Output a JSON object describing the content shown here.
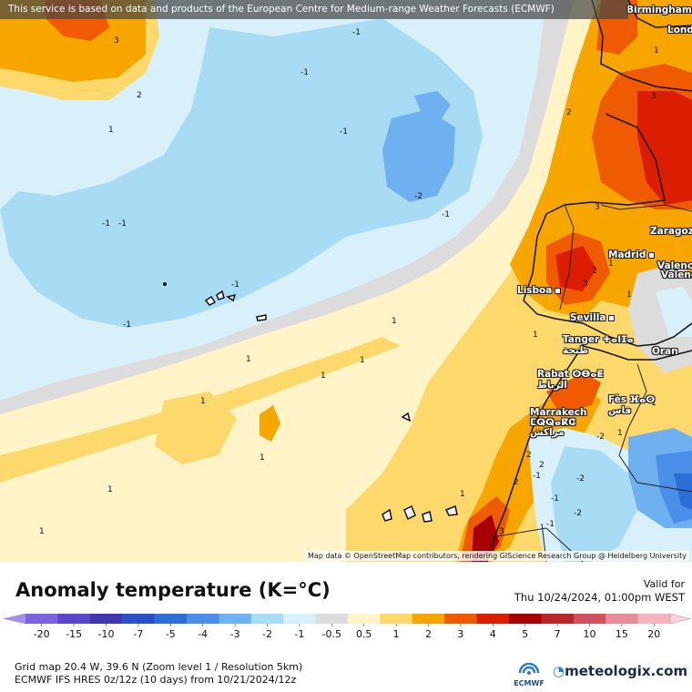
{
  "map": {
    "banner_text": "This service is based on data and products of the European Centre for Medium-range Weather Forecasts (ECMWF)",
    "attribution": "Map data © OpenStreetMap contributors, rendering GIScience Research Group @ Heidelberg University",
    "cities": [
      {
        "name": "Birmingham"
      },
      {
        "name": "Lond"
      },
      {
        "name": "Lisboa"
      },
      {
        "name": "Madrid"
      },
      {
        "name": "Zaragoz"
      },
      {
        "name": "Valenc"
      },
      {
        "name": "Valenc"
      },
      {
        "name": "Sevilla"
      },
      {
        "name": "Tanger ⵜⴰⵏⵊⴰ\nطنجة"
      },
      {
        "name": "Oran"
      },
      {
        "name": "Rabat ⵔⴱⴰⵟ\nالرباط"
      },
      {
        "name": "Fès ⴼⴰⵙ\nفاس"
      },
      {
        "name": "Marrakech\nⵎⵕⵕⴰⴽⵛ\nمراكش"
      }
    ],
    "contour_labels": [
      "3",
      "2",
      "1",
      "-1",
      "-1",
      "-1",
      "-1",
      "-2",
      "-1",
      "-1",
      "-1",
      "-1",
      "1",
      "1",
      "1",
      "1",
      "1",
      "1",
      "1",
      "1",
      "1",
      "1",
      "1",
      "1",
      "2",
      "3",
      "2",
      "3",
      "3",
      "1",
      "1",
      "1",
      "-1",
      "-2",
      "-2",
      "-1",
      "-2",
      "2",
      "2",
      "3",
      "2",
      "-1"
    ]
  },
  "legend": {
    "title": "Anomaly temperature (K=°C)",
    "valid_label": "Valid for",
    "valid_time": "Thu 10/24/2024, 01:00pm WEST",
    "ticks": [
      "-20",
      "-15",
      "-10",
      "-7",
      "-5",
      "-4",
      "-3",
      "-2",
      "-1",
      "-0.5",
      "0.5",
      "1",
      "2",
      "3",
      "4",
      "5",
      "7",
      "10",
      "15",
      "20"
    ],
    "colors": [
      "#a58cf0",
      "#7c64e0",
      "#5a46c8",
      "#4038b0",
      "#2850c8",
      "#2c6ed8",
      "#4a8ee8",
      "#6eb0f0",
      "#a8dcf4",
      "#d8f0fa",
      "#dcdcdc",
      "#fff4c8",
      "#fcd96a",
      "#f7a600",
      "#f05a00",
      "#dc1e00",
      "#a80000",
      "#b82828",
      "#d05060",
      "#e88c9c",
      "#f6b4bc",
      "#fbd2da"
    ],
    "grid_info": "Grid map 20.4 W, 39.6 N (Zoom level 1 / Resolution 5km)",
    "model_info": "ECMWF IFS HRES 0z/12z (10 days) from 10/21/2024/12z",
    "ecmwf_logo_text": "ECMWF",
    "brand": "meteologix.com"
  }
}
